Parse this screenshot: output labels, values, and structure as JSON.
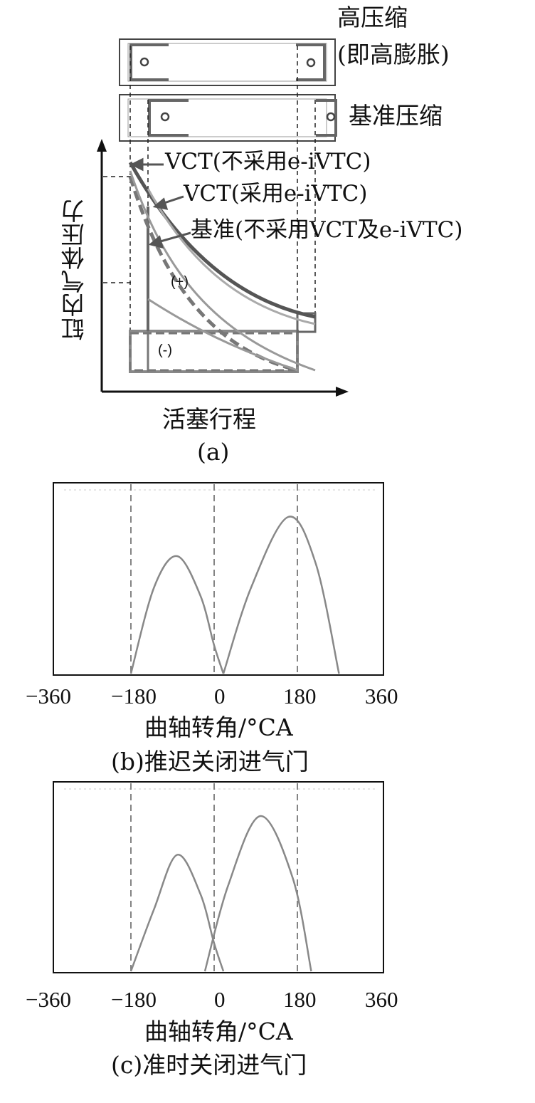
{
  "panel_a": {
    "label_high": "高压缩",
    "label_high_sub": "(即高膨胀)",
    "label_base": "基准压缩",
    "legend": [
      "VCT(不采用e-iVTC)",
      "VCT(采用e-iVTC)",
      "基准(不采用VCT及e-iVTC)"
    ],
    "ylabel": "缸内气体压力",
    "xlabel": "活塞行程",
    "plus": "(+)",
    "minus": "(-)",
    "caption": "(a)"
  },
  "panel_b": {
    "ticks": [
      "−360",
      "−180",
      "0",
      "180",
      "360"
    ],
    "xlabel": "曲轴转角/°CA",
    "caption": "(b)推迟关闭进气门"
  },
  "panel_c": {
    "ticks": [
      "−360",
      "−180",
      "0",
      "180",
      "360"
    ],
    "xlabel": "曲轴转角/°CA",
    "caption": "(c)准时关闭进气门"
  },
  "chart_data": [
    {
      "type": "line",
      "xlim": [
        -360,
        360
      ],
      "tick_values": [
        -360,
        -180,
        0,
        180,
        360
      ],
      "dashed_lines_x": [
        -180,
        0,
        180
      ],
      "series": [
        {
          "x": [
            -180,
            -130,
            -80,
            -30,
            0,
            20
          ],
          "y": [
            0,
            0.55,
            0.75,
            0.5,
            0.18,
            0
          ]
        },
        {
          "x": [
            20,
            80,
            160,
            220,
            270
          ],
          "y": [
            0,
            0.55,
            1.0,
            0.7,
            0
          ]
        }
      ]
    },
    {
      "type": "line",
      "xlim": [
        -360,
        360
      ],
      "tick_values": [
        -360,
        -180,
        0,
        180,
        360
      ],
      "dashed_lines_x": [
        -180,
        0,
        180
      ],
      "series": [
        {
          "x": [
            -180,
            -130,
            -80,
            -30,
            0,
            20
          ],
          "y": [
            0,
            0.4,
            0.75,
            0.5,
            0.18,
            0
          ]
        },
        {
          "x": [
            -20,
            30,
            100,
            170,
            210
          ],
          "y": [
            0,
            0.55,
            1.0,
            0.6,
            0
          ]
        }
      ]
    }
  ]
}
